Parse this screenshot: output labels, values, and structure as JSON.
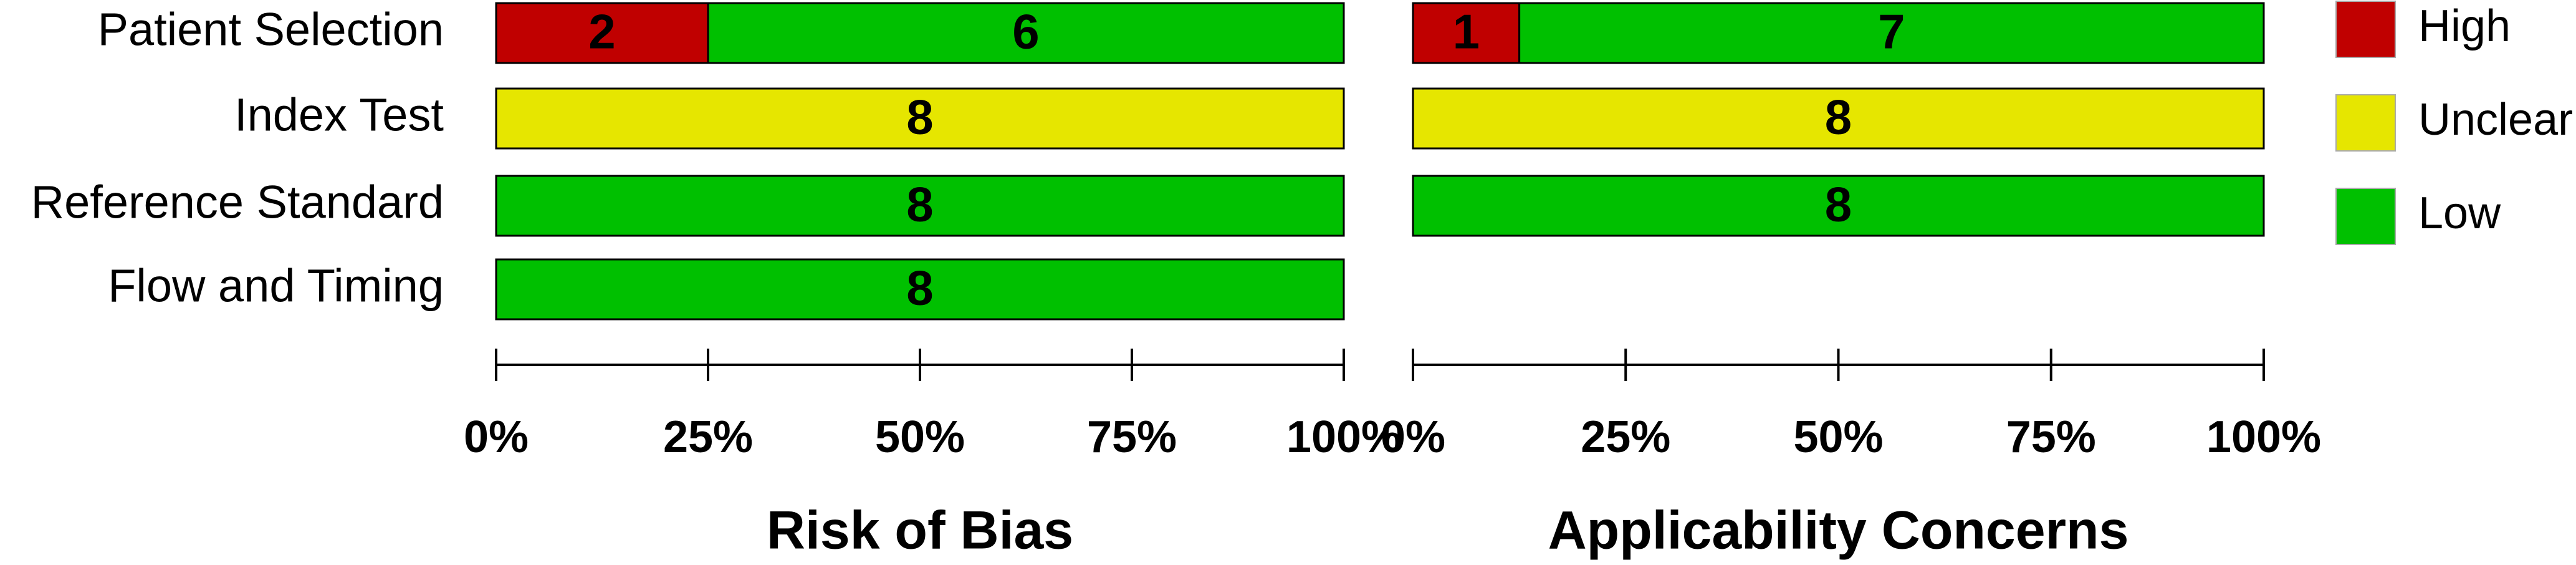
{
  "chart_data": [
    {
      "type": "bar",
      "orientation": "horizontal",
      "stacked": true,
      "title": "Risk of Bias",
      "categories": [
        "Patient Selection",
        "Index Test",
        "Reference Standard",
        "Flow and Timing"
      ],
      "series": [
        {
          "name": "High",
          "color": "#c00000",
          "values": [
            2,
            null,
            null,
            null
          ]
        },
        {
          "name": "Unclear",
          "color": "#e6e600",
          "values": [
            null,
            8,
            null,
            null
          ]
        },
        {
          "name": "Low",
          "color": "#00c000",
          "values": [
            6,
            null,
            8,
            8
          ]
        }
      ],
      "xlim": [
        0,
        8
      ],
      "xticks": [
        {
          "value": 0,
          "label": "0%"
        },
        {
          "value": 2,
          "label": "25%"
        },
        {
          "value": 4,
          "label": "50%"
        },
        {
          "value": 6,
          "label": "75%"
        },
        {
          "value": 8,
          "label": "100%"
        }
      ],
      "legend": "right"
    },
    {
      "type": "bar",
      "orientation": "horizontal",
      "stacked": true,
      "title": "Applicability Concerns",
      "series": [
        {
          "color": "#c00000",
          "values": [
            1,
            null,
            null
          ]
        },
        {
          "color": "#e6e600",
          "values": [
            null,
            8,
            null
          ]
        },
        {
          "color": "#00c000",
          "values": [
            7,
            null,
            8
          ]
        }
      ],
      "xlim": [
        0,
        8
      ],
      "xticks": [
        {
          "value": 0,
          "label": "0%"
        },
        {
          "value": 2,
          "label": "25%"
        },
        {
          "value": 4,
          "label": "50%"
        },
        {
          "value": 6,
          "label": "75%"
        },
        {
          "value": 8,
          "label": "100%"
        }
      ]
    }
  ]
}
